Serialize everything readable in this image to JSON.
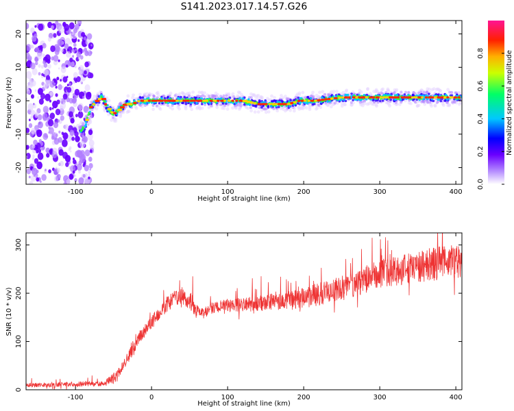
{
  "title": "S141.2023.017.14.57.G26",
  "chart_data": [
    {
      "type": "heatmap",
      "xlabel": "Height of straight line (km)",
      "ylabel": "Frequency (Hz)",
      "xlim": [
        -165,
        408
      ],
      "ylim": [
        -25,
        24
      ],
      "xticks": [
        -100,
        0,
        100,
        200,
        300,
        400
      ],
      "yticks": [
        -20,
        -10,
        0,
        10,
        20
      ],
      "colorbar_label": "Normalized spectral amplitude",
      "colorbar_ticks": [
        0.0,
        0.2,
        0.4,
        0.6,
        0.8
      ],
      "colorbar_range": [
        0,
        1
      ],
      "colormap": [
        "#ffffff",
        "#7a00ff",
        "#0000ff",
        "#00c8ff",
        "#00ff00",
        "#ffff00",
        "#ff7f00",
        "#ff0000",
        "#ff1493"
      ],
      "noise_region_x": [
        -165,
        -78
      ],
      "ridge": {
        "x": [
          -95,
          -88,
          -80,
          -72,
          -65,
          -58,
          -50,
          -44,
          -35,
          -25,
          -15,
          0,
          20,
          40,
          60,
          80,
          100,
          120,
          140,
          160,
          180,
          195,
          205,
          215,
          250,
          300,
          350,
          400
        ],
        "y": [
          -9,
          -8,
          -2,
          0,
          1,
          -2,
          -4,
          -3,
          -1,
          -1,
          0,
          0,
          0,
          0,
          0,
          0,
          0,
          0,
          -1,
          -1,
          -1,
          0,
          0,
          0,
          1,
          1,
          1,
          1
        ]
      }
    },
    {
      "type": "line",
      "xlabel": "Height of straight line (km)",
      "ylabel": "SNR (10 * v/v)",
      "xlim": [
        -165,
        408
      ],
      "ylim": [
        0,
        325
      ],
      "xticks": [
        -100,
        0,
        100,
        200,
        300,
        400
      ],
      "yticks": [
        0,
        100,
        200,
        300
      ],
      "color": "#ee3333",
      "trend": {
        "x": [
          -165,
          -60,
          -45,
          -30,
          -15,
          0,
          15,
          30,
          40,
          50,
          60,
          70,
          80,
          100,
          150,
          200,
          250,
          300,
          350,
          408
        ],
        "y": [
          10,
          12,
          30,
          70,
          110,
          140,
          170,
          190,
          195,
          185,
          165,
          160,
          170,
          175,
          180,
          190,
          210,
          240,
          255,
          270
        ]
      }
    }
  ]
}
